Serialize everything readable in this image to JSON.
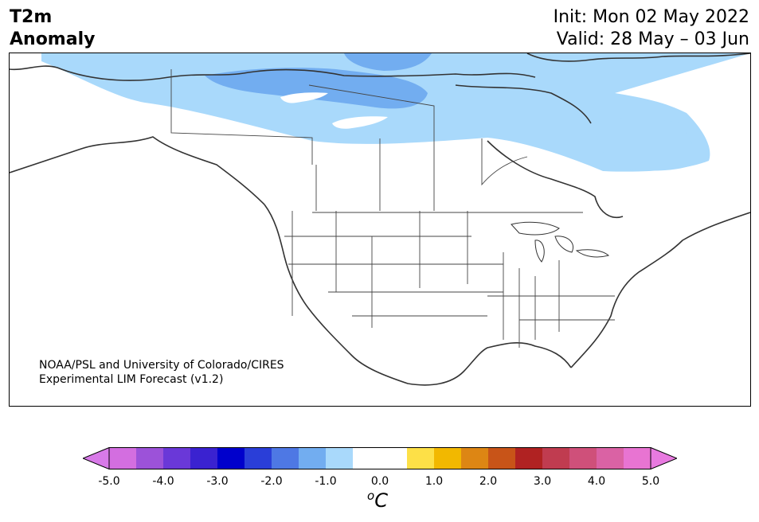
{
  "header": {
    "title_line1": "T2m",
    "title_line2": "Anomaly",
    "init_label": "Init: Mon 02 May 2022",
    "valid_label": "Valid: 28 May – 03 Jun"
  },
  "map": {
    "credit_line1": "NOAA/PSL and University of Colorado/CIRES",
    "credit_line2": "Experimental LIM Forecast (v1.2)",
    "anomaly_regions": [
      {
        "name": "northern-canada-light",
        "level": "-1.0",
        "color": "#a9d9fb"
      },
      {
        "name": "arctic-archipelago-medium",
        "level": "-1.5",
        "color": "#72adf0"
      }
    ]
  },
  "colorbar": {
    "units": "C",
    "units_prefix": "o",
    "ticks": [
      "-5.0",
      "-4.0",
      "-3.0",
      "-2.0",
      "-1.0",
      "0.0",
      "1.0",
      "2.0",
      "3.0",
      "4.0",
      "5.0"
    ],
    "colors": [
      "#d36ee0",
      "#9c52d9",
      "#6a38d8",
      "#3a22d0",
      "#0000cc",
      "#2a3ed8",
      "#4e78e4",
      "#72adf0",
      "#a9d9fb",
      "#ffffff",
      "#ffffff",
      "#fde047",
      "#f2b800",
      "#dd8614",
      "#c85418",
      "#b02222",
      "#c03c50",
      "#cf507a",
      "#da62a4",
      "#e874d2"
    ],
    "under_color": "#d87ae8",
    "over_color": "#e87ae0"
  }
}
